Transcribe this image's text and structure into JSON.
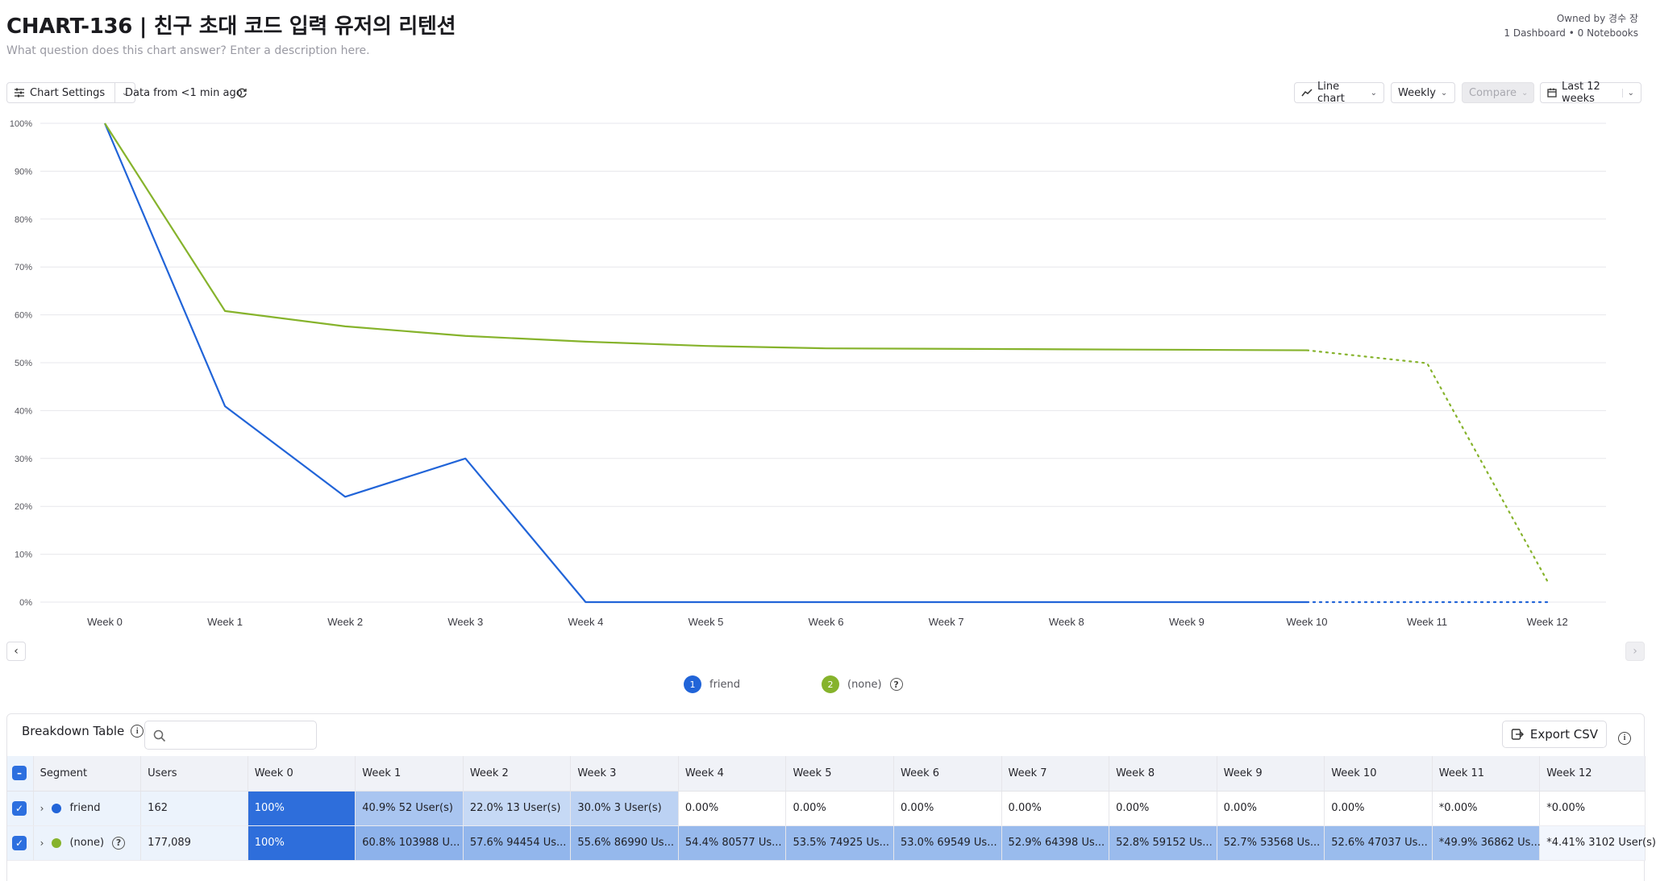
{
  "header": {
    "title": "CHART-136 | 친구 초대 코드 입력 유저의 리텐션",
    "subtitle": "What question does this chart answer? Enter a description here.",
    "owner": "Owned by 경수 장",
    "meta": "1 Dashboard • 0 Notebooks"
  },
  "toolbar": {
    "chart_settings": "Chart Settings",
    "data_freshness": "Data from <1 min ago",
    "chart_type": "Line chart",
    "interval": "Weekly",
    "compare": "Compare",
    "date_range": "Last 12 weeks"
  },
  "chart_data": {
    "type": "line",
    "x": [
      "Week 0",
      "Week 1",
      "Week 2",
      "Week 3",
      "Week 4",
      "Week 5",
      "Week 6",
      "Week 7",
      "Week 8",
      "Week 9",
      "Week 10",
      "Week 11",
      "Week 12"
    ],
    "y_ticks": [
      "0%",
      "10%",
      "20%",
      "30%",
      "40%",
      "50%",
      "60%",
      "70%",
      "80%",
      "90%",
      "100%"
    ],
    "ylim": [
      0,
      100
    ],
    "grid": true,
    "incomplete_from_index": 10,
    "series": [
      {
        "name": "friend",
        "color": "#2164d8",
        "values": [
          100,
          40.9,
          22.0,
          30.0,
          0,
          0,
          0,
          0,
          0,
          0,
          0,
          0,
          0
        ]
      },
      {
        "name": "(none)",
        "color": "#86b32c",
        "values": [
          100,
          60.8,
          57.6,
          55.6,
          54.4,
          53.5,
          53.0,
          52.9,
          52.8,
          52.7,
          52.6,
          49.9,
          4.41
        ]
      }
    ]
  },
  "legend": [
    {
      "index": "1",
      "label": "friend",
      "color": "#2164d8"
    },
    {
      "index": "2",
      "label": "(none)",
      "color": "#86b32c"
    }
  ],
  "breakdown": {
    "title": "Breakdown Table",
    "export_label": "Export CSV",
    "columns": [
      "Segment",
      "Users",
      "Week 0",
      "Week 1",
      "Week 2",
      "Week 3",
      "Week 4",
      "Week 5",
      "Week 6",
      "Week 7",
      "Week 8",
      "Week 9",
      "Week 10",
      "Week 11",
      "Week 12"
    ],
    "rows": [
      {
        "segment": "friend",
        "color": "#2164d8",
        "users": "162",
        "cells": [
          "100%",
          "40.9% 52 User(s)",
          "22.0% 13 User(s)",
          "30.0% 3 User(s)",
          "0.00%",
          "0.00%",
          "0.00%",
          "0.00%",
          "0.00%",
          "0.00%",
          "0.00%",
          "*0.00%",
          "*0.00%"
        ],
        "cell_colors": [
          "#2e6edb",
          "#a9c5f0",
          "#c6d9f5",
          "#bcd2f3",
          "#ffffff",
          "#ffffff",
          "#ffffff",
          "#ffffff",
          "#ffffff",
          "#ffffff",
          "#ffffff",
          "#ffffff",
          "#ffffff"
        ]
      },
      {
        "segment": "(none)",
        "color": "#86b32c",
        "users": "177,089",
        "cells": [
          "100%",
          "60.8% 103988 U...",
          "57.6% 94454 Us...",
          "55.6% 86990 Us...",
          "54.4% 80577 Us...",
          "53.5% 74925 Us...",
          "53.0% 69549 Us...",
          "52.9% 64398 Us...",
          "52.8% 59152 Us...",
          "52.7% 53568 Us...",
          "52.6% 47037 Us...",
          "*49.9% 36862 Us...",
          "*4.41% 3102 User(s)"
        ],
        "cell_colors": [
          "#2e6edb",
          "#8db2eb",
          "#92b6ec",
          "#95b8ec",
          "#97b9ec",
          "#98baed",
          "#99bbed",
          "#99bbed",
          "#9abbed",
          "#9abbed",
          "#9abced",
          "#9fbfee",
          "#f2f6fd"
        ]
      }
    ]
  }
}
